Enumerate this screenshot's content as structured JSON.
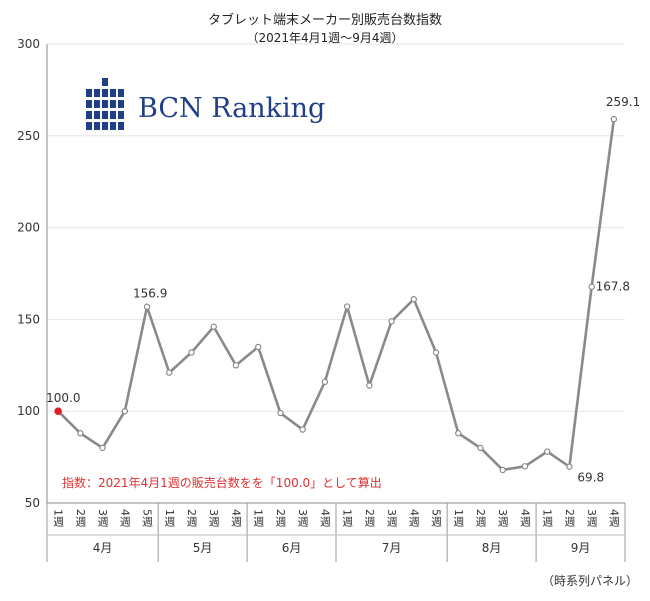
{
  "chart_data": {
    "type": "line",
    "title": "タブレット端末メーカー別販売台数指数",
    "subtitle": "（2021年4月1週〜9月4週）",
    "ylim": [
      50,
      300
    ],
    "yticks": [
      50,
      100,
      150,
      200,
      250,
      300
    ],
    "grid": true,
    "weeks": [
      "1週",
      "2週",
      "3週",
      "4週",
      "5週",
      "1週",
      "2週",
      "3週",
      "4週",
      "1週",
      "2週",
      "3週",
      "4週",
      "1週",
      "2週",
      "3週",
      "4週",
      "5週",
      "1週",
      "2週",
      "3週",
      "4週",
      "1週",
      "2週",
      "3週",
      "4週"
    ],
    "months": [
      {
        "label": "4月",
        "count": 5
      },
      {
        "label": "5月",
        "count": 4
      },
      {
        "label": "6月",
        "count": 4
      },
      {
        "label": "7月",
        "count": 5
      },
      {
        "label": "8月",
        "count": 4
      },
      {
        "label": "9月",
        "count": 4
      }
    ],
    "series": [
      {
        "values": [
          100.0,
          88,
          80,
          100,
          156.9,
          121,
          132,
          146,
          125,
          135,
          99,
          90,
          116,
          157,
          114,
          149,
          161,
          132,
          88,
          80,
          68,
          70,
          78,
          69.8,
          167.8,
          259.1
        ],
        "color": "#8a8a8a",
        "highlight_index": 0,
        "highlight_color": "#e02020"
      }
    ],
    "data_labels": [
      {
        "index": 0,
        "text": "100.0"
      },
      {
        "index": 4,
        "text": "156.9"
      },
      {
        "index": 23,
        "text": "69.8"
      },
      {
        "index": 24,
        "text": "167.8"
      },
      {
        "index": 25,
        "text": "259.1"
      }
    ],
    "note": "指数：2021年4月1週の販売台数をを「100.0」として算出",
    "footer": "（時系列パネル）"
  },
  "logo": {
    "text": "BCN Ranking",
    "color": "#1f3f86"
  }
}
